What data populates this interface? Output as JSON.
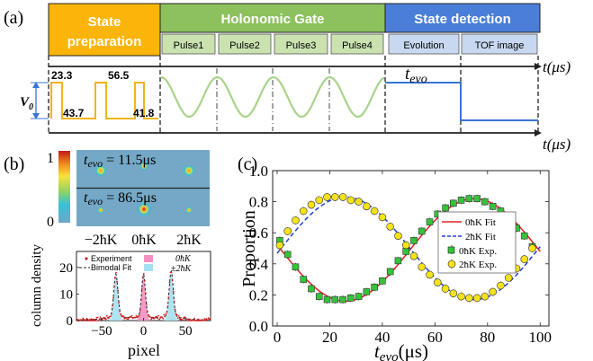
{
  "panel_a": {
    "label": "(a)",
    "headers": {
      "state_prep": "State preparation",
      "holonomic": "Holonomic Gate",
      "state_detection": "State detection"
    },
    "pulses": [
      "Pulse1",
      "Pulse2",
      "Pulse3",
      "Pulse4"
    ],
    "detection_steps": [
      "Evolution",
      "TOF image"
    ],
    "prep_values": [
      "23.3",
      "43.7",
      "56.5",
      "41.8"
    ],
    "v0_label": "V",
    "v0_sub": "0",
    "tevo_label": "t",
    "tevo_sub": "evo",
    "time_axis_1": "t(μs)",
    "time_axis_2": "t(μs)",
    "colors": {
      "prep": "#fbb50a",
      "gate": "#8cc15e",
      "gate_light": "#c9e2b0",
      "detect": "#4a7ed8",
      "detect_light": "#c7d8f0",
      "wave": "#a9d38b",
      "prep_line": "#f2b319",
      "detect_line": "#3a74d4"
    }
  },
  "panel_b": {
    "label": "(b)",
    "colorbar_max": "1",
    "colorbar_min": "0",
    "image_top_t": "t",
    "image_top_sub": "evo",
    "image_top_value": "= 11.5μs",
    "image_bot_t": "t",
    "image_bot_sub": "evo",
    "image_bot_value": "= 86.5μs",
    "image_x_ticks": [
      "−2ħK",
      "0ħK",
      "2ħK"
    ],
    "plot": {
      "ylabel": "column density",
      "xlabel": "pixel",
      "y_ticks": [
        "0",
        "10",
        "20"
      ],
      "x_ticks": [
        "−50",
        "0",
        "50"
      ],
      "legend": {
        "experiment": "Experiment",
        "bimodal": "Bimodal Fit",
        "zero": "0ħK",
        "pm2": "±2ħK"
      }
    }
  },
  "panel_c": {
    "label": "(c)",
    "chart_data": {
      "type": "scatter",
      "xlabel": "t",
      "xlabel_sub": "evo",
      "xlabel_unit": "(μs)",
      "ylabel": "Proportion",
      "xlim": [
        0,
        100
      ],
      "ylim": [
        0.0,
        1.0
      ],
      "x_ticks": [
        "0",
        "20",
        "40",
        "60",
        "80",
        "100"
      ],
      "y_ticks": [
        "0.0",
        "0.2",
        "0.4",
        "0.6",
        "0.8",
        "1.0"
      ],
      "legend": [
        "0ħK Fit",
        "2ħK Fit",
        "0ħK  Exp.",
        "2ħK  Exp."
      ],
      "series": [
        {
          "name": "0ħK Exp.",
          "x": [
            1,
            4,
            7,
            10,
            13,
            16,
            19,
            22,
            25,
            28,
            31,
            34,
            37,
            40,
            43,
            46,
            49,
            52,
            55,
            58,
            61,
            64,
            67,
            70,
            73,
            76,
            79,
            82,
            85,
            88,
            91,
            94,
            97
          ],
          "y": [
            0.55,
            0.46,
            0.38,
            0.3,
            0.24,
            0.19,
            0.17,
            0.17,
            0.17,
            0.18,
            0.19,
            0.22,
            0.25,
            0.29,
            0.35,
            0.42,
            0.48,
            0.55,
            0.61,
            0.67,
            0.72,
            0.76,
            0.79,
            0.81,
            0.82,
            0.82,
            0.8,
            0.77,
            0.74,
            0.69,
            0.63,
            0.58,
            0.51
          ]
        },
        {
          "name": "2ħK Exp.",
          "x": [
            1,
            4,
            7,
            10,
            13,
            16,
            19,
            22,
            25,
            28,
            31,
            34,
            37,
            40,
            43,
            46,
            49,
            52,
            55,
            58,
            61,
            64,
            67,
            70,
            73,
            76,
            79,
            82,
            85,
            88,
            91,
            94,
            97
          ],
          "y": [
            0.52,
            0.61,
            0.68,
            0.74,
            0.78,
            0.81,
            0.83,
            0.83,
            0.83,
            0.81,
            0.8,
            0.77,
            0.74,
            0.7,
            0.64,
            0.58,
            0.52,
            0.45,
            0.38,
            0.33,
            0.28,
            0.24,
            0.21,
            0.19,
            0.18,
            0.18,
            0.19,
            0.22,
            0.26,
            0.31,
            0.37,
            0.43,
            0.5
          ]
        }
      ]
    }
  }
}
